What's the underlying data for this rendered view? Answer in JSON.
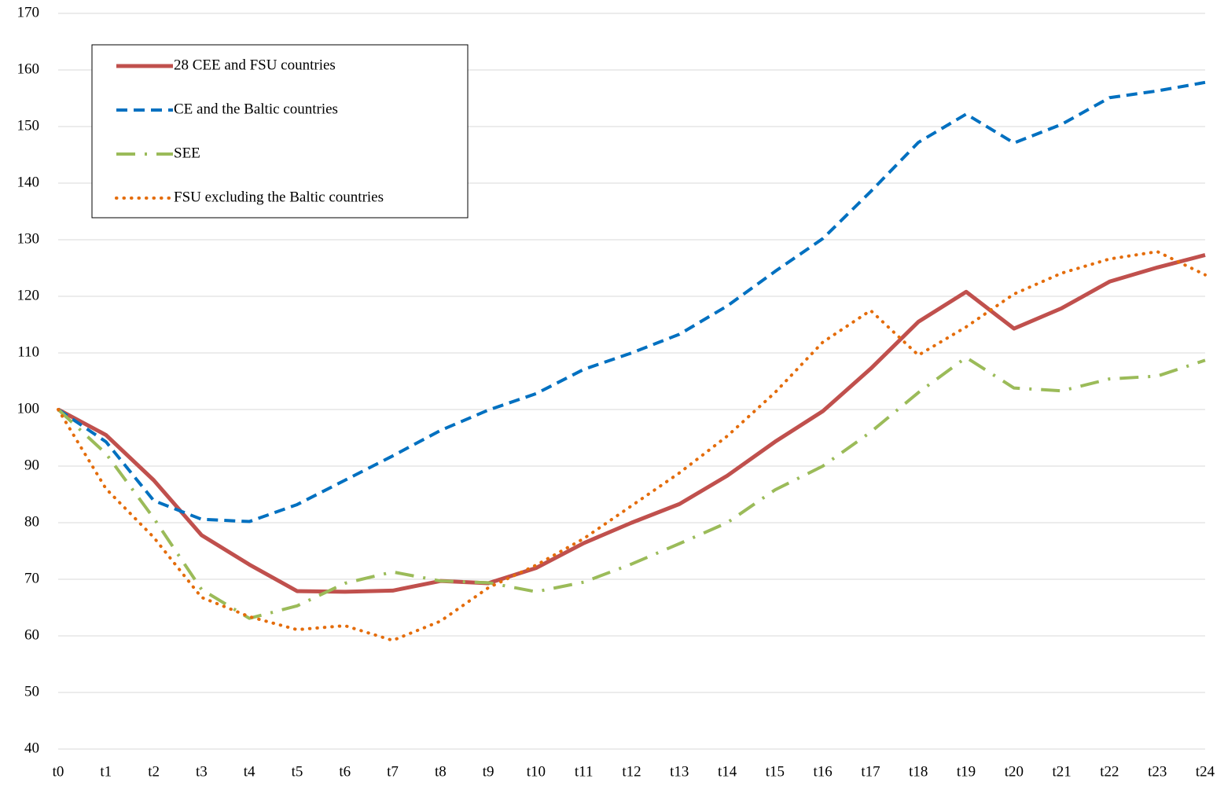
{
  "chart_data": {
    "type": "line",
    "categories": [
      "t0",
      "t1",
      "t2",
      "t3",
      "t4",
      "t5",
      "t6",
      "t7",
      "t8",
      "t9",
      "t10",
      "t11",
      "t12",
      "t13",
      "t14",
      "t15",
      "t16",
      "t17",
      "t18",
      "t19",
      "t20",
      "t21",
      "t22",
      "t23",
      "t24"
    ],
    "series": [
      {
        "name": "28 CEE and  FSU countries",
        "color": "#c0504d",
        "style": "solid",
        "values": [
          100,
          95.5,
          87.5,
          77.8,
          72.6,
          67.9,
          67.8,
          68.0,
          69.7,
          69.3,
          72,
          76.4,
          80,
          83.3,
          88.3,
          94.3,
          99.7,
          107.2,
          115.5,
          120.8,
          114.3,
          117.9,
          122.6,
          125.1,
          127.3
        ]
      },
      {
        "name": "CE and the Baltic countries",
        "color": "#0070c0",
        "style": "dashed",
        "values": [
          100,
          94.3,
          83.9,
          80.6,
          80.2,
          83.2,
          87.5,
          91.8,
          96.3,
          99.9,
          102.8,
          107.1,
          110,
          113.3,
          118.3,
          124.4,
          130.2,
          138.5,
          147.2,
          152.2,
          147.1,
          150.4,
          155.1,
          156.3,
          157.8
        ]
      },
      {
        "name": "SEE",
        "color": "#9bbb59",
        "style": "dashdot",
        "values": [
          100,
          92.2,
          80.8,
          68.2,
          63.1,
          65.3,
          69.3,
          71.3,
          69.7,
          69.4,
          67.8,
          69.5,
          72.7,
          76.3,
          80,
          85.8,
          90,
          96,
          103,
          109.2,
          103.8,
          103.3,
          105.4,
          105.9,
          108.7
        ]
      },
      {
        "name": "FSU excluding the Baltic countries",
        "color": "#e46c0a",
        "style": "dotted",
        "values": [
          100,
          86,
          77.4,
          66.8,
          63.4,
          61.1,
          61.8,
          59.2,
          62.6,
          68.5,
          72.5,
          77.2,
          83,
          88.8,
          95.3,
          103,
          111.9,
          117.5,
          109.6,
          114.6,
          120.4,
          124.1,
          126.6,
          127.9,
          123.8
        ]
      }
    ],
    "ylim": [
      40,
      170
    ],
    "yticks": [
      40,
      50,
      60,
      70,
      80,
      90,
      100,
      110,
      120,
      130,
      140,
      150,
      160,
      170
    ],
    "grid": true,
    "legend": "upper left"
  }
}
